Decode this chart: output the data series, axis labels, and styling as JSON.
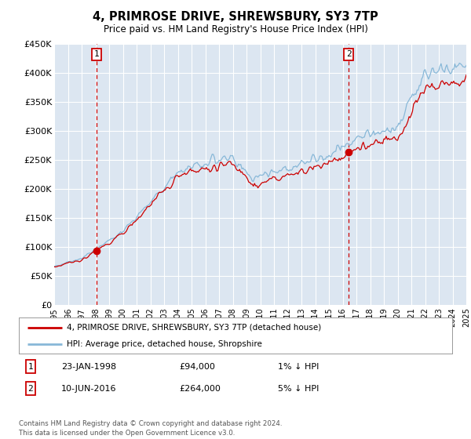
{
  "title": "4, PRIMROSE DRIVE, SHREWSBURY, SY3 7TP",
  "subtitle": "Price paid vs. HM Land Registry's House Price Index (HPI)",
  "bg_color": "#dce6f1",
  "sale1_date": 1998.07,
  "sale1_price": 94000,
  "sale2_date": 2016.44,
  "sale2_price": 264000,
  "ylim_min": 0,
  "ylim_max": 450000,
  "xlim_min": 1995,
  "xlim_max": 2025,
  "hpi_color": "#88b8d8",
  "price_color": "#cc0000",
  "dashed_color": "#cc0000",
  "legend_label1": "4, PRIMROSE DRIVE, SHREWSBURY, SY3 7TP (detached house)",
  "legend_label2": "HPI: Average price, detached house, Shropshire",
  "note1_num": "1",
  "note1_date": "23-JAN-1998",
  "note1_price": "£94,000",
  "note1_hpi": "1% ↓ HPI",
  "note2_num": "2",
  "note2_date": "10-JUN-2016",
  "note2_price": "£264,000",
  "note2_hpi": "5% ↓ HPI",
  "footer": "Contains HM Land Registry data © Crown copyright and database right 2024.\nThis data is licensed under the Open Government Licence v3.0.",
  "yticks": [
    0,
    50000,
    100000,
    150000,
    200000,
    250000,
    300000,
    350000,
    400000,
    450000
  ],
  "ytick_labels": [
    "£0",
    "£50K",
    "£100K",
    "£150K",
    "£200K",
    "£250K",
    "£300K",
    "£350K",
    "£400K",
    "£450K"
  ],
  "xticks": [
    1995,
    1996,
    1997,
    1998,
    1999,
    2000,
    2001,
    2002,
    2003,
    2004,
    2005,
    2006,
    2007,
    2008,
    2009,
    2010,
    2011,
    2012,
    2013,
    2014,
    2015,
    2016,
    2017,
    2018,
    2019,
    2020,
    2021,
    2022,
    2023,
    2024,
    2025
  ]
}
